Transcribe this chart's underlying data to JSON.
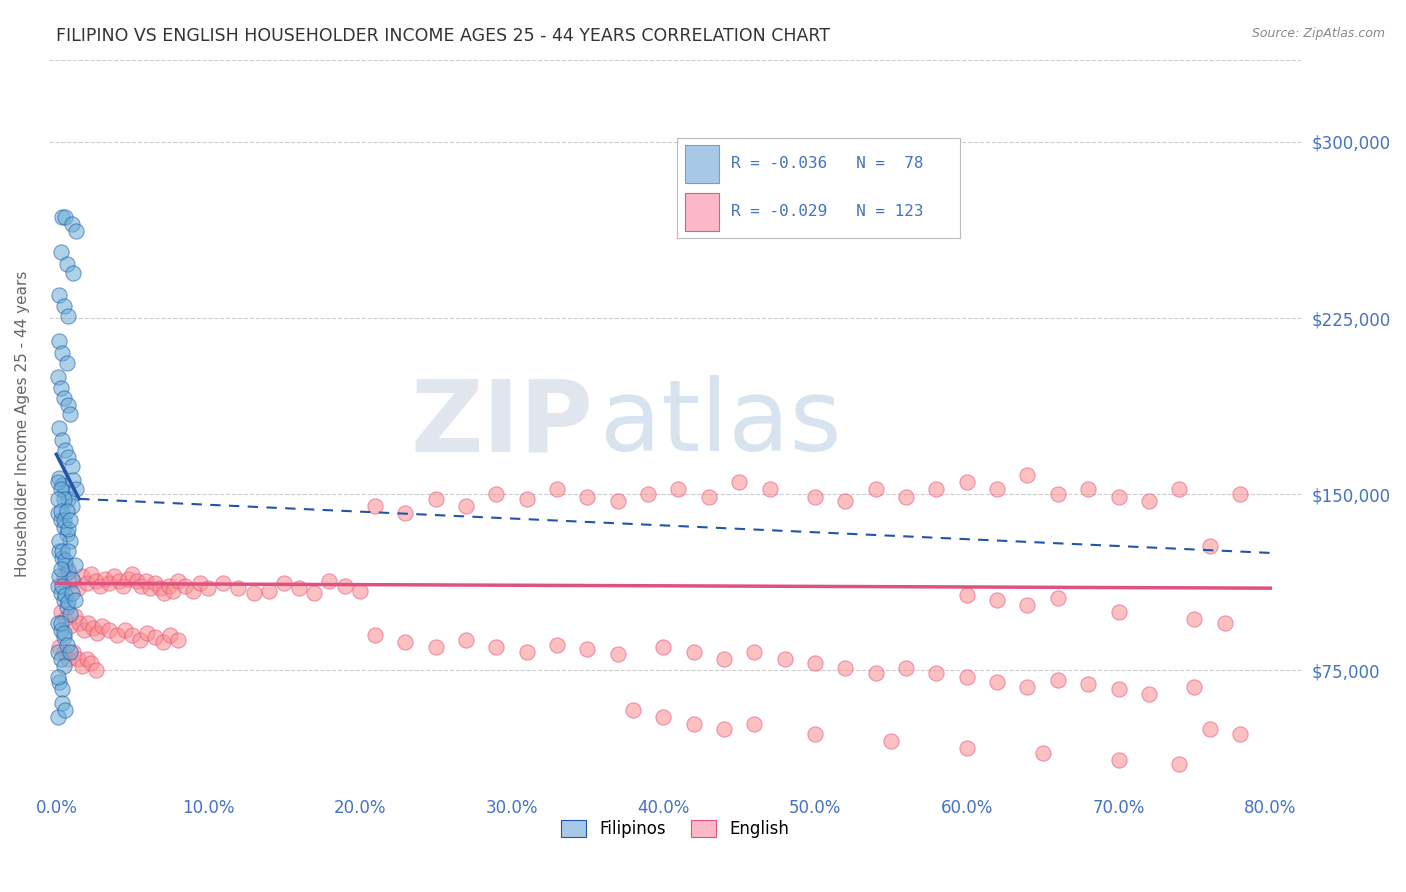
{
  "title": "FILIPINO VS ENGLISH HOUSEHOLDER INCOME AGES 25 - 44 YEARS CORRELATION CHART",
  "source": "Source: ZipAtlas.com",
  "xlabel_values": [
    0.0,
    0.1,
    0.2,
    0.3,
    0.4,
    0.5,
    0.6,
    0.7,
    0.8
  ],
  "ylabel_values": [
    75000,
    150000,
    225000,
    300000
  ],
  "xlim": [
    -0.005,
    0.82
  ],
  "ylim": [
    25000,
    335000
  ],
  "filipino_color": "#6baed6",
  "english_color": "#fc8d8d",
  "filipino_line_color": "#2255aa",
  "english_line_color": "#e05080",
  "grid_color": "#cccccc",
  "axis_label_color": "#4472c4",
  "ylabel_label": "Householder Income Ages 25 - 44 years",
  "legend_filipino_color": "#a8c8e8",
  "legend_english_color": "#fcb8c8",
  "filipino_scatter": [
    [
      0.004,
      268000
    ],
    [
      0.006,
      268000
    ],
    [
      0.01,
      265000
    ],
    [
      0.013,
      262000
    ],
    [
      0.003,
      253000
    ],
    [
      0.007,
      248000
    ],
    [
      0.011,
      244000
    ],
    [
      0.002,
      235000
    ],
    [
      0.005,
      230000
    ],
    [
      0.008,
      226000
    ],
    [
      0.002,
      215000
    ],
    [
      0.004,
      210000
    ],
    [
      0.007,
      206000
    ],
    [
      0.001,
      200000
    ],
    [
      0.003,
      195000
    ],
    [
      0.005,
      191000
    ],
    [
      0.008,
      188000
    ],
    [
      0.009,
      184000
    ],
    [
      0.002,
      178000
    ],
    [
      0.004,
      173000
    ],
    [
      0.006,
      169000
    ],
    [
      0.008,
      166000
    ],
    [
      0.01,
      162000
    ],
    [
      0.002,
      157000
    ],
    [
      0.004,
      154000
    ],
    [
      0.006,
      151000
    ],
    [
      0.008,
      148000
    ],
    [
      0.01,
      145000
    ],
    [
      0.001,
      142000
    ],
    [
      0.003,
      139000
    ],
    [
      0.005,
      136000
    ],
    [
      0.007,
      133000
    ],
    [
      0.009,
      130000
    ],
    [
      0.001,
      155000
    ],
    [
      0.003,
      152000
    ],
    [
      0.005,
      148000
    ],
    [
      0.002,
      126000
    ],
    [
      0.004,
      123000
    ],
    [
      0.006,
      120000
    ],
    [
      0.008,
      117000
    ],
    [
      0.01,
      114000
    ],
    [
      0.001,
      148000
    ],
    [
      0.003,
      143000
    ],
    [
      0.005,
      139000
    ],
    [
      0.008,
      135000
    ],
    [
      0.001,
      111000
    ],
    [
      0.003,
      108000
    ],
    [
      0.005,
      105000
    ],
    [
      0.007,
      102000
    ],
    [
      0.009,
      99000
    ],
    [
      0.002,
      130000
    ],
    [
      0.004,
      126000
    ],
    [
      0.006,
      122000
    ],
    [
      0.001,
      95000
    ],
    [
      0.003,
      92000
    ],
    [
      0.005,
      89000
    ],
    [
      0.002,
      115000
    ],
    [
      0.004,
      111000
    ],
    [
      0.006,
      107000
    ],
    [
      0.008,
      104000
    ],
    [
      0.001,
      83000
    ],
    [
      0.003,
      80000
    ],
    [
      0.005,
      77000
    ],
    [
      0.002,
      70000
    ],
    [
      0.004,
      67000
    ],
    [
      0.001,
      55000
    ],
    [
      0.003,
      95000
    ],
    [
      0.005,
      91000
    ],
    [
      0.007,
      86000
    ],
    [
      0.009,
      83000
    ],
    [
      0.004,
      61000
    ],
    [
      0.006,
      58000
    ],
    [
      0.008,
      126000
    ],
    [
      0.012,
      120000
    ],
    [
      0.01,
      108000
    ],
    [
      0.012,
      105000
    ],
    [
      0.007,
      143000
    ],
    [
      0.009,
      139000
    ],
    [
      0.011,
      156000
    ],
    [
      0.013,
      152000
    ],
    [
      0.003,
      118000
    ],
    [
      0.001,
      72000
    ]
  ],
  "english_scatter": [
    [
      0.005,
      115000
    ],
    [
      0.008,
      118000
    ],
    [
      0.011,
      113000
    ],
    [
      0.014,
      110000
    ],
    [
      0.017,
      115000
    ],
    [
      0.02,
      112000
    ],
    [
      0.023,
      116000
    ],
    [
      0.026,
      113000
    ],
    [
      0.029,
      111000
    ],
    [
      0.032,
      114000
    ],
    [
      0.035,
      112000
    ],
    [
      0.038,
      115000
    ],
    [
      0.041,
      113000
    ],
    [
      0.044,
      111000
    ],
    [
      0.047,
      114000
    ],
    [
      0.05,
      116000
    ],
    [
      0.053,
      113000
    ],
    [
      0.056,
      111000
    ],
    [
      0.059,
      113000
    ],
    [
      0.062,
      110000
    ],
    [
      0.065,
      112000
    ],
    [
      0.068,
      110000
    ],
    [
      0.071,
      108000
    ],
    [
      0.074,
      111000
    ],
    [
      0.077,
      109000
    ],
    [
      0.08,
      113000
    ],
    [
      0.085,
      111000
    ],
    [
      0.09,
      109000
    ],
    [
      0.095,
      112000
    ],
    [
      0.1,
      110000
    ],
    [
      0.11,
      112000
    ],
    [
      0.12,
      110000
    ],
    [
      0.13,
      108000
    ],
    [
      0.14,
      109000
    ],
    [
      0.15,
      112000
    ],
    [
      0.16,
      110000
    ],
    [
      0.17,
      108000
    ],
    [
      0.18,
      113000
    ],
    [
      0.19,
      111000
    ],
    [
      0.2,
      109000
    ],
    [
      0.003,
      100000
    ],
    [
      0.006,
      97000
    ],
    [
      0.009,
      94000
    ],
    [
      0.012,
      98000
    ],
    [
      0.015,
      95000
    ],
    [
      0.018,
      92000
    ],
    [
      0.021,
      95000
    ],
    [
      0.024,
      93000
    ],
    [
      0.027,
      91000
    ],
    [
      0.03,
      94000
    ],
    [
      0.035,
      92000
    ],
    [
      0.04,
      90000
    ],
    [
      0.045,
      92000
    ],
    [
      0.05,
      90000
    ],
    [
      0.055,
      88000
    ],
    [
      0.06,
      91000
    ],
    [
      0.065,
      89000
    ],
    [
      0.07,
      87000
    ],
    [
      0.075,
      90000
    ],
    [
      0.08,
      88000
    ],
    [
      0.002,
      85000
    ],
    [
      0.005,
      83000
    ],
    [
      0.008,
      80000
    ],
    [
      0.011,
      83000
    ],
    [
      0.014,
      80000
    ],
    [
      0.017,
      77000
    ],
    [
      0.02,
      80000
    ],
    [
      0.023,
      78000
    ],
    [
      0.026,
      75000
    ],
    [
      0.21,
      145000
    ],
    [
      0.23,
      142000
    ],
    [
      0.25,
      148000
    ],
    [
      0.27,
      145000
    ],
    [
      0.29,
      150000
    ],
    [
      0.31,
      148000
    ],
    [
      0.33,
      152000
    ],
    [
      0.35,
      149000
    ],
    [
      0.37,
      147000
    ],
    [
      0.39,
      150000
    ],
    [
      0.41,
      152000
    ],
    [
      0.43,
      149000
    ],
    [
      0.45,
      155000
    ],
    [
      0.47,
      152000
    ],
    [
      0.5,
      149000
    ],
    [
      0.52,
      147000
    ],
    [
      0.54,
      152000
    ],
    [
      0.56,
      149000
    ],
    [
      0.58,
      152000
    ],
    [
      0.6,
      155000
    ],
    [
      0.62,
      152000
    ],
    [
      0.64,
      158000
    ],
    [
      0.66,
      150000
    ],
    [
      0.68,
      152000
    ],
    [
      0.7,
      149000
    ],
    [
      0.72,
      147000
    ],
    [
      0.74,
      152000
    ],
    [
      0.76,
      128000
    ],
    [
      0.78,
      150000
    ],
    [
      0.21,
      90000
    ],
    [
      0.23,
      87000
    ],
    [
      0.25,
      85000
    ],
    [
      0.27,
      88000
    ],
    [
      0.29,
      85000
    ],
    [
      0.31,
      83000
    ],
    [
      0.33,
      86000
    ],
    [
      0.35,
      84000
    ],
    [
      0.37,
      82000
    ],
    [
      0.4,
      85000
    ],
    [
      0.42,
      83000
    ],
    [
      0.44,
      80000
    ],
    [
      0.46,
      83000
    ],
    [
      0.48,
      80000
    ],
    [
      0.5,
      78000
    ],
    [
      0.52,
      76000
    ],
    [
      0.54,
      74000
    ],
    [
      0.56,
      76000
    ],
    [
      0.58,
      74000
    ],
    [
      0.6,
      72000
    ],
    [
      0.62,
      70000
    ],
    [
      0.64,
      68000
    ],
    [
      0.66,
      71000
    ],
    [
      0.68,
      69000
    ],
    [
      0.7,
      67000
    ],
    [
      0.72,
      65000
    ],
    [
      0.75,
      68000
    ],
    [
      0.76,
      50000
    ],
    [
      0.78,
      48000
    ],
    [
      0.6,
      107000
    ],
    [
      0.62,
      105000
    ],
    [
      0.64,
      103000
    ],
    [
      0.66,
      106000
    ],
    [
      0.7,
      100000
    ],
    [
      0.75,
      97000
    ],
    [
      0.77,
      95000
    ],
    [
      0.38,
      58000
    ],
    [
      0.4,
      55000
    ],
    [
      0.42,
      52000
    ],
    [
      0.44,
      50000
    ],
    [
      0.46,
      52000
    ],
    [
      0.5,
      48000
    ],
    [
      0.55,
      45000
    ],
    [
      0.6,
      42000
    ],
    [
      0.65,
      40000
    ],
    [
      0.7,
      37000
    ],
    [
      0.74,
      35000
    ]
  ],
  "filipino_trendline_solid": [
    [
      0.0,
      167000
    ],
    [
      0.015,
      148000
    ]
  ],
  "filipino_trendline_dashed": [
    [
      0.015,
      148000
    ],
    [
      0.8,
      125000
    ]
  ],
  "english_trendline": [
    [
      0.0,
      112000
    ],
    [
      0.8,
      110000
    ]
  ]
}
